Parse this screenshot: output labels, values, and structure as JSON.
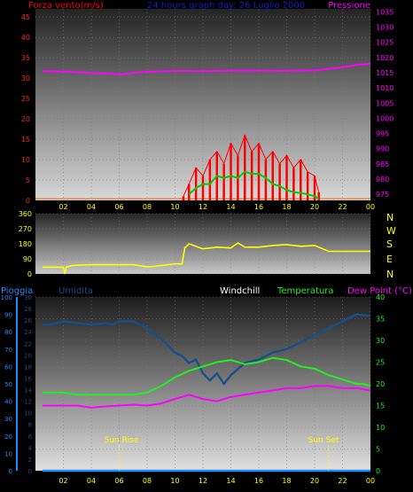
{
  "header": {
    "left_label": "Forza vento",
    "left_unit": "(m/s)",
    "title": "24 hours graph day:  26 Luglio 2000",
    "right_label": "Pressione"
  },
  "compass": [
    "N",
    "W",
    "S",
    "E",
    "N"
  ],
  "bottom_header": {
    "pioggia": "Pioggia",
    "umidita": "Umidita",
    "windchill": "Windchill",
    "temperatura": "Temperatura",
    "dewpoint": "Dew Point (°C)"
  },
  "markers": {
    "sunrise": "Sun Rise",
    "sunset": "Sun Set"
  },
  "colors": {
    "wind": "#ff0000",
    "gust": "#00cc00",
    "pressure": "#ff00ff",
    "direction": "#ffff00",
    "humidity": "#174f8c",
    "temperature": "#22ee22",
    "dewpoint": "#ff00ff",
    "rain": "#1c8cff"
  },
  "chart_data": [
    {
      "type": "line",
      "name": "wind-pressure",
      "x_ticks": [
        "02",
        "04",
        "06",
        "08",
        "10",
        "12",
        "14",
        "16",
        "18",
        "20",
        "22",
        "00"
      ],
      "y_left_ticks": [
        0,
        5,
        10,
        15,
        20,
        25,
        30,
        35,
        40,
        45
      ],
      "y_left_range": [
        0,
        47
      ],
      "y_right_ticks": [
        975,
        980,
        985,
        990,
        995,
        1000,
        1005,
        1010,
        1015,
        1020,
        1025,
        1030,
        1035
      ],
      "y_right_range": [
        973,
        1036
      ],
      "wind_speed": {
        "x": [
          10.6,
          11,
          11.5,
          12,
          12.5,
          13,
          13.5,
          14,
          14.5,
          15,
          15.5,
          16,
          16.5,
          17,
          17.5,
          18,
          18.5,
          19,
          19.5,
          20,
          20.3
        ],
        "y": [
          1,
          4,
          8,
          6,
          10,
          12,
          9,
          14,
          11,
          16,
          12,
          14,
          10,
          12,
          9,
          11,
          8,
          10,
          7,
          6,
          2
        ]
      },
      "gust": {
        "x": [
          11,
          11.5,
          12,
          12.5,
          13,
          13.5,
          14,
          14.5,
          15,
          15.5,
          16,
          16.5,
          17,
          17.5,
          18,
          18.5,
          19,
          19.5,
          20,
          20.3
        ],
        "y": [
          1.5,
          3,
          4,
          4,
          6,
          5.5,
          6,
          5.5,
          7,
          6.5,
          6.5,
          5.5,
          4,
          3.5,
          2.5,
          2,
          1.8,
          1.5,
          1,
          0.5
        ]
      },
      "pressure": {
        "x": [
          0.5,
          2,
          4,
          5,
          6,
          7,
          8,
          10,
          12,
          14,
          16,
          18,
          20,
          21,
          22,
          23,
          24
        ],
        "y": [
          1015.5,
          1015.4,
          1014.9,
          1014.8,
          1014.4,
          1014.9,
          1015.3,
          1015.6,
          1015.5,
          1015.7,
          1015.7,
          1015.6,
          1015.8,
          1016.2,
          1016.8,
          1017.5,
          1018.0
        ]
      }
    },
    {
      "type": "line",
      "name": "wind-direction",
      "y_ticks": [
        0,
        90,
        180,
        270,
        360
      ],
      "y_range": [
        0,
        360
      ],
      "direction": {
        "x": [
          0.5,
          1.5,
          2,
          2.1,
          2.2,
          2.4,
          2.6,
          3,
          4,
          5,
          6,
          7,
          8,
          8.5,
          9,
          10,
          10.5,
          10.7,
          11,
          12,
          13,
          14,
          14.5,
          15,
          16,
          17,
          18,
          19,
          20,
          21,
          22,
          23,
          24
        ],
        "y": [
          40,
          40,
          40,
          0,
          40,
          45,
          50,
          52,
          55,
          55,
          55,
          55,
          42,
          45,
          50,
          60,
          60,
          155,
          180,
          150,
          160,
          155,
          185,
          160,
          160,
          170,
          175,
          165,
          170,
          135,
          135,
          135,
          135
        ]
      }
    },
    {
      "type": "line",
      "name": "temp-humidity",
      "y_temp_ticks": [
        0,
        5,
        10,
        15,
        20,
        25,
        30,
        35,
        40
      ],
      "y_temp_range": [
        0,
        40
      ],
      "y_hum_ticks": [
        0,
        10,
        20,
        30,
        40,
        50,
        60,
        70,
        80,
        90,
        100
      ],
      "y_hum_range": [
        0,
        100
      ],
      "y_rain_ticks": [
        0,
        2,
        4,
        6,
        8,
        10,
        12,
        14,
        16,
        18,
        20,
        22,
        24,
        26,
        28,
        30
      ],
      "humidity": {
        "x": [
          0.5,
          1,
          2,
          3,
          4,
          5,
          5.5,
          6,
          7,
          8,
          9,
          10,
          10.5,
          11,
          11.5,
          12,
          12.5,
          13,
          13.5,
          14,
          15,
          16,
          17,
          18,
          19,
          20,
          21,
          22,
          22.5,
          23,
          24
        ],
        "y": [
          84,
          84,
          86,
          85,
          84,
          85,
          84,
          86,
          86,
          82,
          76,
          68,
          66,
          62,
          64,
          56,
          52,
          56,
          50,
          55,
          62,
          64,
          68,
          70,
          74,
          78,
          82,
          86,
          88,
          90,
          89
        ]
      },
      "temperature": {
        "x": [
          0.5,
          1,
          2,
          3,
          4,
          5,
          6,
          7,
          8,
          9,
          10,
          11,
          12,
          13,
          14,
          15,
          16,
          17,
          18,
          19,
          20,
          21,
          22,
          23,
          23.5,
          24
        ],
        "y": [
          18,
          18,
          18,
          17.5,
          17.5,
          17.5,
          17.5,
          17.5,
          18,
          19.5,
          21.5,
          23,
          24,
          25,
          25.5,
          24.5,
          25,
          26,
          25.5,
          24,
          23.5,
          22,
          21,
          20,
          20,
          19.5
        ]
      },
      "dewpoint": {
        "x": [
          0.5,
          1,
          2,
          3,
          4,
          5,
          6,
          7,
          8,
          9,
          10,
          11,
          12,
          13,
          14,
          15,
          16,
          17,
          18,
          19,
          20,
          21,
          22,
          23,
          24
        ],
        "y": [
          15,
          15,
          15,
          15,
          14.5,
          14.8,
          15,
          15.2,
          15,
          15.5,
          16.5,
          17.5,
          16.5,
          16,
          17,
          17.5,
          18,
          18.5,
          19,
          19,
          19.5,
          19.5,
          19,
          19,
          18.5
        ]
      },
      "rain": {
        "x": [
          0.5,
          24
        ],
        "y": [
          0,
          0
        ]
      },
      "sunrise_hour": 6,
      "sunset_hour": 21
    }
  ]
}
